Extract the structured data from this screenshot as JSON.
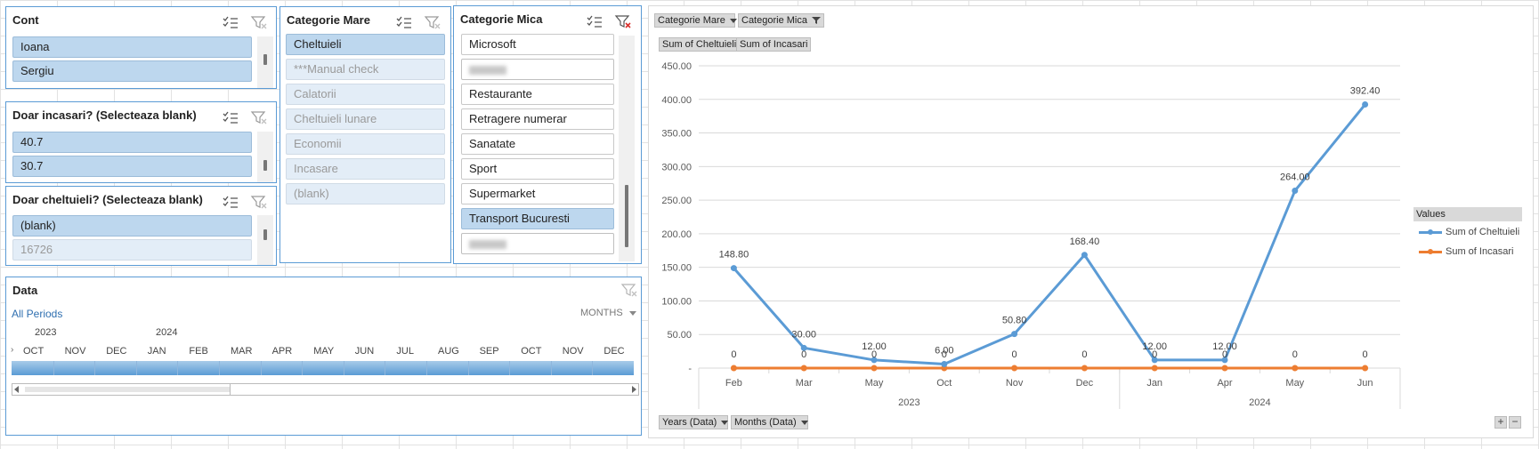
{
  "slicers": {
    "cont": {
      "title": "Cont",
      "items": [
        {
          "label": "Ioana",
          "state": "sel"
        },
        {
          "label": "Sergiu",
          "state": "sel"
        }
      ]
    },
    "doar_incasari": {
      "title": "Doar incasari? (Selecteaza blank)",
      "items": [
        {
          "label": "40.7",
          "state": "sel"
        },
        {
          "label": "30.7",
          "state": "sel"
        }
      ]
    },
    "doar_cheltuieli": {
      "title": "Doar cheltuieli? (Selecteaza blank)",
      "items": [
        {
          "label": "(blank)",
          "state": "sel"
        },
        {
          "label": "16726",
          "state": "nodata"
        }
      ]
    },
    "categorie_mare": {
      "title": "Categorie Mare",
      "items": [
        {
          "label": "Cheltuieli",
          "state": "sel"
        },
        {
          "label": "***Manual check",
          "state": "nodata"
        },
        {
          "label": "Calatorii",
          "state": "nodata"
        },
        {
          "label": "Cheltuieli lunare",
          "state": "nodata"
        },
        {
          "label": "Economii",
          "state": "nodata"
        },
        {
          "label": "Incasare",
          "state": "nodata"
        },
        {
          "label": "(blank)",
          "state": "nodata"
        }
      ]
    },
    "categorie_mica": {
      "title": "Categorie Mica",
      "items": [
        {
          "label": "Microsoft",
          "state": "unsel"
        },
        {
          "label": "",
          "state": "blur"
        },
        {
          "label": "Restaurante",
          "state": "unsel"
        },
        {
          "label": "Retragere numerar",
          "state": "unsel"
        },
        {
          "label": "Sanatate",
          "state": "unsel"
        },
        {
          "label": "Sport",
          "state": "unsel"
        },
        {
          "label": "Supermarket",
          "state": "unsel"
        },
        {
          "label": "Transport Bucuresti",
          "state": "sel"
        },
        {
          "label": "",
          "state": "blur"
        }
      ]
    }
  },
  "timeline": {
    "title": "Data",
    "all_periods": "All Periods",
    "level": "MONTHS",
    "years": [
      "2023",
      "2024"
    ],
    "months": [
      "OCT",
      "NOV",
      "DEC",
      "JAN",
      "FEB",
      "MAR",
      "APR",
      "MAY",
      "JUN",
      "JUL",
      "AUG",
      "SEP",
      "OCT",
      "NOV",
      "DEC"
    ]
  },
  "chart_buttons": {
    "filters": [
      "Categorie Mare",
      "Categorie Mica"
    ],
    "values": [
      "Sum of Cheltuieli",
      "Sum of Incasari"
    ],
    "axis": [
      "Years (Data)",
      "Months (Data)"
    ]
  },
  "legend": {
    "title": "Values"
  },
  "colors": {
    "cheltuieli": "#5b9bd5",
    "incasari": "#ed7d31",
    "slicer_border": "#5b9bd5",
    "selected": "#bdd7ee"
  },
  "chart_data": {
    "type": "line",
    "categories": [
      "Feb",
      "Mar",
      "May",
      "Oct",
      "Nov",
      "Dec",
      "Jan",
      "Apr",
      "May",
      "Jun"
    ],
    "groups": [
      {
        "label": "2023",
        "count": 6
      },
      {
        "label": "2024",
        "count": 4
      }
    ],
    "series": [
      {
        "name": "Sum of Cheltuieli",
        "values": [
          148.8,
          30,
          12,
          6,
          50.8,
          168.4,
          12,
          12,
          264,
          392.4
        ],
        "labels": [
          "148.80",
          "30.00",
          "12.00",
          "6.00",
          "50.80",
          "168.40",
          "12.00",
          "12.00",
          "264.00",
          "392.40"
        ]
      },
      {
        "name": "Sum of Incasari",
        "values": [
          0,
          0,
          0,
          0,
          0,
          0,
          0,
          0,
          0,
          0
        ],
        "labels": [
          "0",
          "0",
          "0",
          "0",
          "0",
          "0",
          "0",
          "0",
          "0",
          "0"
        ]
      }
    ],
    "yticks": [
      "-",
      "50.00",
      "100.00",
      "150.00",
      "200.00",
      "250.00",
      "300.00",
      "350.00",
      "400.00",
      "450.00"
    ],
    "ylim": [
      0,
      450
    ],
    "grid": true,
    "legend_position": "right"
  }
}
